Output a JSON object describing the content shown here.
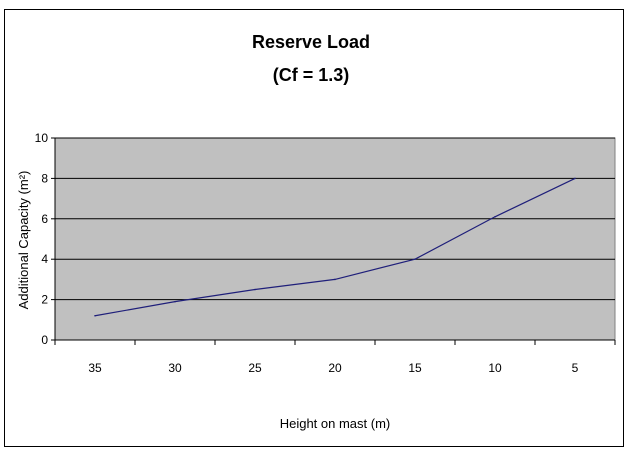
{
  "chart_data": {
    "type": "line",
    "title": "Reserve Load",
    "subtitle": "(Cf = 1.3)",
    "xlabel": "Height on mast (m)",
    "ylabel": "Additional Capacity (m²)",
    "categories": [
      "35",
      "30",
      "25",
      "20",
      "15",
      "10",
      "5"
    ],
    "series": [
      {
        "values": [
          1.2,
          1.9,
          2.5,
          3.0,
          4.0,
          6.1,
          8.0
        ]
      }
    ],
    "ylim": [
      0,
      10
    ],
    "yticks": [
      "0",
      "2",
      "4",
      "6",
      "8",
      "10"
    ],
    "grid": "horizontal",
    "legend": "none",
    "colors": {
      "plot_bg": "#c0c0c0",
      "line": "#1f1f7a",
      "grid": "#000000"
    }
  }
}
